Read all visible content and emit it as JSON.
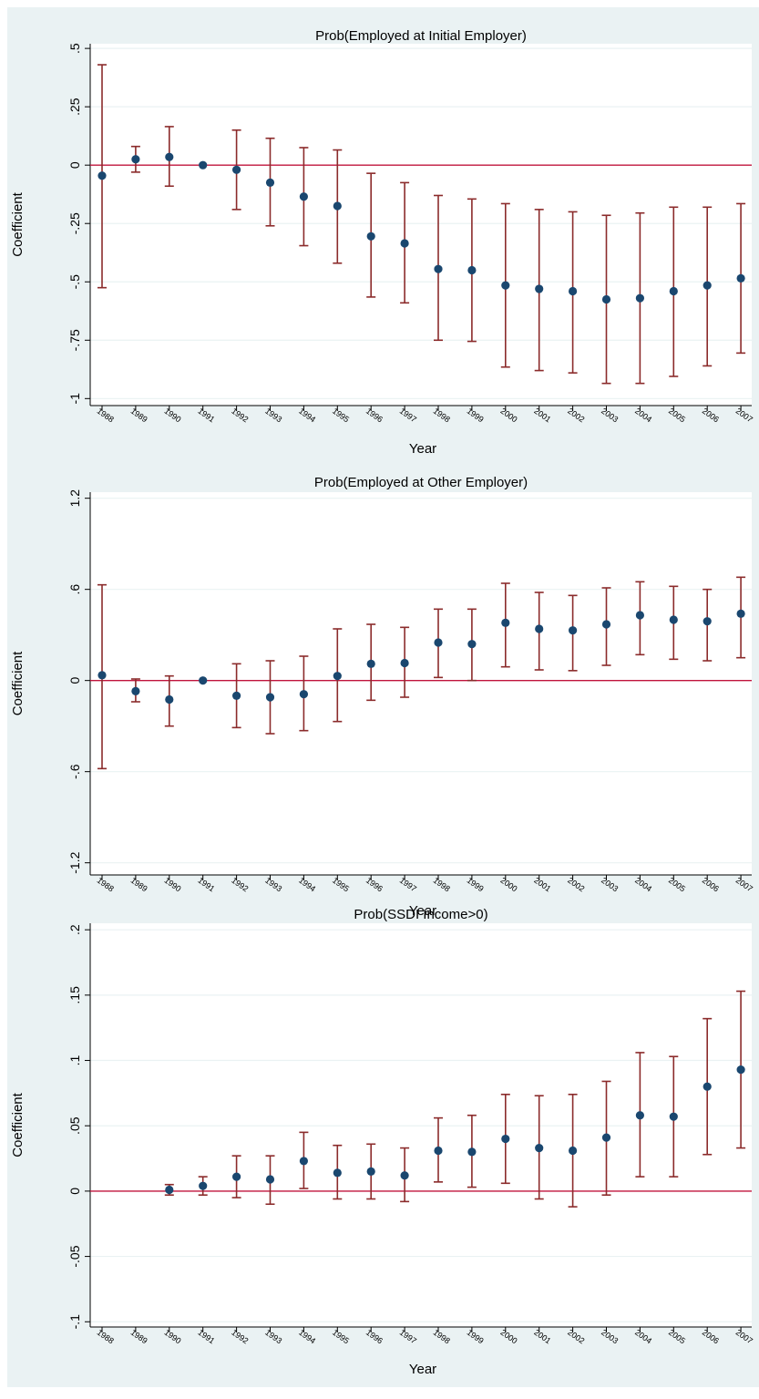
{
  "colors": {
    "outer_bg": "#eaf2f3",
    "plot_bg": "#ffffff",
    "grid": "#eaf2f3",
    "zero_line": "#c0143c",
    "ci": "#8b2b2b",
    "point": "#1a476f"
  },
  "chart_data": [
    {
      "type": "scatter",
      "title": "Prob(Employed at Initial Employer)",
      "xlabel": "Year",
      "ylabel": "Coefficient",
      "ylim": [
        -1.03,
        0.52
      ],
      "yticks": [
        0.5,
        0.25,
        0,
        -0.25,
        -0.5,
        -0.75,
        -1
      ],
      "ytick_labels": [
        ".5",
        ".25",
        "0",
        "-.25",
        "-.5",
        "-.75",
        "-1"
      ],
      "reference_line": 0,
      "grid": true,
      "x": [
        1988,
        1989,
        1990,
        1991,
        1992,
        1993,
        1994,
        1995,
        1996,
        1997,
        1998,
        1999,
        2000,
        2001,
        2002,
        2003,
        2004,
        2005,
        2006,
        2007
      ],
      "y": [
        -0.045,
        0.025,
        0.035,
        0.0,
        -0.02,
        -0.075,
        -0.135,
        -0.175,
        -0.305,
        -0.335,
        -0.445,
        -0.45,
        -0.515,
        -0.53,
        -0.54,
        -0.575,
        -0.57,
        -0.54,
        -0.515,
        -0.485
      ],
      "ci_low": [
        -0.525,
        -0.03,
        -0.09,
        0.0,
        -0.19,
        -0.26,
        -0.345,
        -0.42,
        -0.565,
        -0.59,
        -0.75,
        -0.755,
        -0.865,
        -0.88,
        -0.89,
        -0.935,
        -0.935,
        -0.905,
        -0.86,
        -0.805
      ],
      "ci_high": [
        0.43,
        0.08,
        0.165,
        0.0,
        0.15,
        0.115,
        0.075,
        0.065,
        -0.035,
        -0.075,
        -0.13,
        -0.145,
        -0.165,
        -0.19,
        -0.2,
        -0.215,
        -0.205,
        -0.18,
        -0.18,
        -0.165
      ]
    },
    {
      "type": "scatter",
      "title": "Prob(Employed at Other Employer)",
      "xlabel": "Year",
      "ylabel": "Coefficient",
      "ylim": [
        -1.28,
        1.24
      ],
      "yticks": [
        1.2,
        0.6,
        0,
        -0.6,
        -1.2
      ],
      "ytick_labels": [
        "1.2",
        ".6",
        "0",
        "-.6",
        "-1.2"
      ],
      "reference_line": 0,
      "grid": true,
      "x": [
        1988,
        1989,
        1990,
        1991,
        1992,
        1993,
        1994,
        1995,
        1996,
        1997,
        1998,
        1999,
        2000,
        2001,
        2002,
        2003,
        2004,
        2005,
        2006,
        2007
      ],
      "y": [
        0.035,
        -0.07,
        -0.125,
        0.0,
        -0.1,
        -0.11,
        -0.09,
        0.03,
        0.11,
        0.115,
        0.25,
        0.24,
        0.38,
        0.34,
        0.33,
        0.37,
        0.43,
        0.4,
        0.39,
        0.44
      ],
      "ci_low": [
        -0.58,
        -0.14,
        -0.3,
        0.0,
        -0.31,
        -0.35,
        -0.33,
        -0.27,
        -0.13,
        -0.11,
        0.02,
        0.0,
        0.09,
        0.07,
        0.065,
        0.1,
        0.17,
        0.14,
        0.13,
        0.15
      ],
      "ci_high": [
        0.63,
        0.01,
        0.03,
        0.0,
        0.11,
        0.13,
        0.16,
        0.34,
        0.37,
        0.35,
        0.47,
        0.47,
        0.64,
        0.58,
        0.56,
        0.61,
        0.65,
        0.62,
        0.6,
        0.68
      ]
    },
    {
      "type": "scatter",
      "title": "Prob(SSDI Income>0)",
      "xlabel": "Year",
      "ylabel": "Coefficient",
      "ylim": [
        -0.104,
        0.205
      ],
      "yticks": [
        0.2,
        0.15,
        0.1,
        0.05,
        0,
        -0.05,
        -0.1
      ],
      "ytick_labels": [
        ".2",
        ".15",
        ".1",
        ".05",
        "0",
        "-.05",
        "-.1"
      ],
      "reference_line": 0,
      "grid": true,
      "x": [
        1988,
        1989,
        1990,
        1991,
        1992,
        1993,
        1994,
        1995,
        1996,
        1997,
        1998,
        1999,
        2000,
        2001,
        2002,
        2003,
        2004,
        2005,
        2006,
        2007
      ],
      "y": [
        null,
        null,
        0.001,
        0.004,
        0.011,
        0.009,
        0.023,
        0.014,
        0.015,
        0.012,
        0.031,
        0.03,
        0.04,
        0.033,
        0.031,
        0.041,
        0.058,
        0.057,
        0.08,
        0.093
      ],
      "ci_low": [
        null,
        null,
        -0.003,
        -0.003,
        -0.005,
        -0.01,
        0.002,
        -0.006,
        -0.006,
        -0.008,
        0.007,
        0.003,
        0.006,
        -0.006,
        -0.012,
        -0.003,
        0.011,
        0.011,
        0.028,
        0.033
      ],
      "ci_high": [
        null,
        null,
        0.005,
        0.011,
        0.027,
        0.027,
        0.045,
        0.035,
        0.036,
        0.033,
        0.056,
        0.058,
        0.074,
        0.073,
        0.074,
        0.084,
        0.106,
        0.103,
        0.132,
        0.153
      ]
    }
  ]
}
